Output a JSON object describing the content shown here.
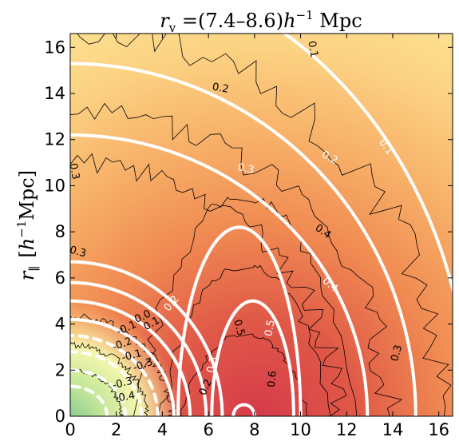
{
  "chart_data": {
    "type": "heatmap",
    "title": "r_v = (7.4–8.6) h^-1 Mpc",
    "title_parts": {
      "var": "r",
      "sub": "v",
      "eq": " =(7.4–8.6)",
      "h": "h",
      "exp": "−1",
      "unit": " Mpc"
    },
    "xlabel": "",
    "ylabel": "r_∥ [h^-1 Mpc]",
    "ylabel_parts": {
      "var": "r",
      "sub": "∥",
      "bracket_open": "[",
      "h": "h",
      "exp": "−1",
      "unit": "Mpc]"
    },
    "xlim": [
      0,
      16.6
    ],
    "ylim": [
      0,
      16.6
    ],
    "x_ticks": [
      0,
      2,
      4,
      6,
      8,
      10,
      12,
      14,
      16
    ],
    "y_ticks": [
      0,
      2,
      4,
      6,
      8,
      10,
      12,
      14,
      16
    ],
    "x_tick_labels": [
      "0",
      "2",
      "4",
      "6",
      "8",
      "10",
      "12",
      "14",
      "16"
    ],
    "y_tick_labels": [
      "0",
      "2",
      "4",
      "6",
      "8",
      "10",
      "12",
      "14",
      "16"
    ],
    "colormap": "Spectral_r",
    "colormap_stops": [
      "#66bd63",
      "#d9ef8b",
      "#fee08b",
      "#fdae61",
      "#f46d43",
      "#d73027"
    ],
    "field_range": [
      -0.5,
      0.65
    ],
    "field_peak": {
      "x": 8.2,
      "y": 1.5,
      "value": 0.63
    },
    "field_trough": {
      "x": 0.5,
      "y": 0.5,
      "value": -0.45
    },
    "model_contours": [
      {
        "level": -0.4,
        "style": "dashed",
        "color": "#ffffff",
        "rx": 1.6,
        "ry": 1.3
      },
      {
        "level": -0.3,
        "style": "dashed",
        "color": "#ffffff",
        "rx": 2.4,
        "ry": 2.0
      },
      {
        "level": -0.2,
        "style": "dashed",
        "color": "#ffffff",
        "rx": 3.1,
        "ry": 2.8
      },
      {
        "level": -0.1,
        "style": "dashed",
        "color": "#ffffff",
        "rx": 3.8,
        "ry": 3.5
      },
      {
        "level": 0.0,
        "style": "solid",
        "color": "#ffffff",
        "rx": 4.5,
        "ry": 4.2
      },
      {
        "level": 0.1,
        "style": "solid",
        "color": "#ffffff",
        "rx": 5.2,
        "ry": 5.0
      },
      {
        "level": 0.2,
        "style": "solid",
        "color": "#ffffff",
        "rx": 5.9,
        "ry": 5.8
      },
      {
        "level": 0.3,
        "style": "solid",
        "color": "#ffffff",
        "rx": 6.6,
        "ry": 6.7
      }
    ],
    "outer_contours": [
      {
        "level": 0.1,
        "style": "solid",
        "color": "#ffffff",
        "rx": 17.3,
        "ry": 19.7
      },
      {
        "level": 0.2,
        "style": "solid",
        "color": "#ffffff",
        "rx": 15.0,
        "ry": 15.3
      },
      {
        "level": 0.3,
        "style": "solid",
        "color": "#ffffff",
        "rx": 12.9,
        "ry": 12.2
      }
    ],
    "ridge_contours": [
      {
        "level": 0.4,
        "style": "solid",
        "color": "#ffffff",
        "x0": 10.0,
        "peak_y": 8.2
      },
      {
        "level": 0.5,
        "style": "solid",
        "color": "#ffffff",
        "x0": 9.7,
        "peak_y": 5.0
      },
      {
        "level": 0.6,
        "style": "solid",
        "color": "#ffffff",
        "x0": 8.0,
        "peak_y": 0.5
      }
    ],
    "contour_labels": [
      {
        "text": "0.1",
        "x": 10.4,
        "y": 15.9,
        "color": "#000000",
        "rot": 80
      },
      {
        "text": "0.2",
        "x": 6.5,
        "y": 14.1,
        "color": "#000000",
        "rot": 10
      },
      {
        "text": "0.1",
        "x": 13.6,
        "y": 11.6,
        "color": "#ffffff",
        "rot": 52
      },
      {
        "text": "0.2",
        "x": 11.2,
        "y": 11.1,
        "color": "#ffffff",
        "rot": 28
      },
      {
        "text": "0.3",
        "x": 7.6,
        "y": 10.6,
        "color": "#ffffff",
        "rot": 12
      },
      {
        "text": "0.3",
        "x": 0.05,
        "y": 10.6,
        "color": "#000000",
        "rot": 80
      },
      {
        "text": "0.4",
        "x": 10.9,
        "y": 7.9,
        "color": "#000000",
        "rot": 35
      },
      {
        "text": "0.3",
        "x": 0.3,
        "y": 7.0,
        "color": "#000000",
        "rot": 15
      },
      {
        "text": "0.4",
        "x": 11.2,
        "y": 5.6,
        "color": "#ffffff",
        "rot": 40
      },
      {
        "text": "0.2",
        "x": 4.5,
        "y": 4.8,
        "color": "#ffffff",
        "rot": -50
      },
      {
        "text": "0.5",
        "x": 7.2,
        "y": 3.8,
        "color": "#000000",
        "rot": 75
      },
      {
        "text": "0.5",
        "x": 8.8,
        "y": 3.8,
        "color": "#ffffff",
        "rot": -80
      },
      {
        "text": "0.0",
        "x": 3.2,
        "y": 4.2,
        "color": "#000000",
        "rot": -25
      },
      {
        "text": "0.1",
        "x": 3.6,
        "y": 3.9,
        "color": "#000000",
        "rot": -30
      },
      {
        "text": "-0.1",
        "x": 2.5,
        "y": 3.7,
        "color": "#000000",
        "rot": -25
      },
      {
        "text": "-0.2",
        "x": 2.3,
        "y": 3.0,
        "color": "#000000",
        "rot": -20
      },
      {
        "text": "-0.1",
        "x": 2.7,
        "y": 2.5,
        "color": "#000000",
        "rot": -15
      },
      {
        "text": "0.3",
        "x": 6.3,
        "y": 2.2,
        "color": "#ffffff",
        "rot": -75
      },
      {
        "text": "0.6",
        "x": 8.9,
        "y": 1.6,
        "color": "#000000",
        "rot": -85
      },
      {
        "text": "-0.3",
        "x": 3.2,
        "y": 2.1,
        "color": "#000000",
        "rot": -20
      },
      {
        "text": "-0.3",
        "x": 2.3,
        "y": 1.3,
        "color": "#000000",
        "rot": -15
      },
      {
        "text": "0.2",
        "x": 6.0,
        "y": 1.2,
        "color": "#000000",
        "rot": -65
      },
      {
        "text": "-0.4",
        "x": 2.4,
        "y": 0.7,
        "color": "#000000",
        "rot": -10
      },
      {
        "text": "0.3",
        "x": 14.3,
        "y": 2.7,
        "color": "#000000",
        "rot": -75
      }
    ]
  }
}
